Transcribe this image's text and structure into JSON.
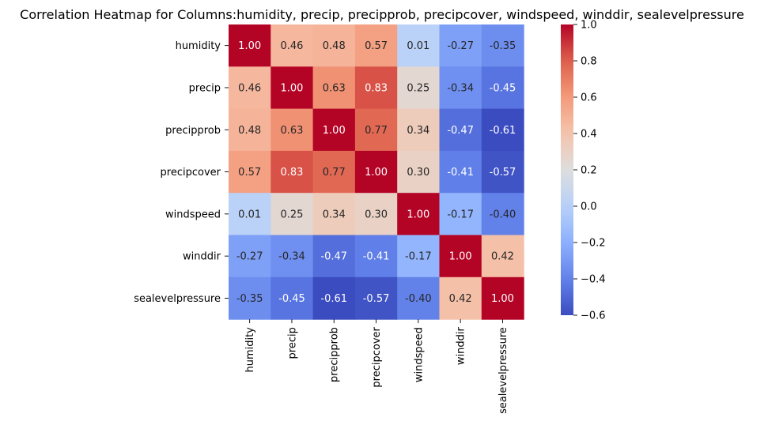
{
  "chart_data": {
    "type": "heatmap",
    "title": "Correlation Heatmap for Columns:humidity, precip, precipprob, precipcover, windspeed, winddir, sealevelpressure",
    "xlabel": "",
    "ylabel": "",
    "rows": [
      "humidity",
      "precip",
      "precipprob",
      "precipcover",
      "windspeed",
      "winddir",
      "sealevelpressure"
    ],
    "columns": [
      "humidity",
      "precip",
      "precipprob",
      "precipcover",
      "windspeed",
      "winddir",
      "sealevelpressure"
    ],
    "values": [
      [
        1.0,
        0.46,
        0.48,
        0.57,
        0.01,
        -0.27,
        -0.35
      ],
      [
        0.46,
        1.0,
        0.63,
        0.83,
        0.25,
        -0.34,
        -0.45
      ],
      [
        0.48,
        0.63,
        1.0,
        0.77,
        0.34,
        -0.47,
        -0.61
      ],
      [
        0.57,
        0.83,
        0.77,
        1.0,
        0.3,
        -0.41,
        -0.57
      ],
      [
        0.01,
        0.25,
        0.34,
        0.3,
        1.0,
        -0.17,
        -0.4
      ],
      [
        -0.27,
        -0.34,
        -0.47,
        -0.41,
        -0.17,
        1.0,
        0.42
      ],
      [
        -0.35,
        -0.45,
        -0.61,
        -0.57,
        -0.4,
        0.42,
        1.0
      ]
    ],
    "cell_labels": [
      [
        "1.00",
        "0.46",
        "0.48",
        "0.57",
        "0.01",
        "-0.27",
        "-0.35"
      ],
      [
        "0.46",
        "1.00",
        "0.63",
        "0.83",
        "0.25",
        "-0.34",
        "-0.45"
      ],
      [
        "0.48",
        "0.63",
        "1.00",
        "0.77",
        "0.34",
        "-0.47",
        "-0.61"
      ],
      [
        "0.57",
        "0.83",
        "0.77",
        "1.00",
        "0.30",
        "-0.41",
        "-0.57"
      ],
      [
        "0.01",
        "0.25",
        "0.34",
        "0.30",
        "1.00",
        "-0.17",
        "-0.40"
      ],
      [
        "-0.27",
        "-0.34",
        "-0.47",
        "-0.41",
        "-0.17",
        "1.00",
        "0.42"
      ],
      [
        "-0.35",
        "-0.45",
        "-0.61",
        "-0.57",
        "-0.40",
        "0.42",
        "1.00"
      ]
    ],
    "colormap": "coolwarm",
    "vmin": -0.6,
    "vmax": 1.0,
    "colorbar": {
      "ticks": [
        1.0,
        0.8,
        0.6,
        0.4,
        0.2,
        0.0,
        -0.2,
        -0.4,
        -0.6
      ],
      "tick_labels": [
        "1.0",
        "0.8",
        "0.6",
        "0.4",
        "0.2",
        "0.0",
        "−0.2",
        "−0.4",
        "−0.6"
      ]
    },
    "grid": false,
    "legend": "colorbar-right"
  }
}
